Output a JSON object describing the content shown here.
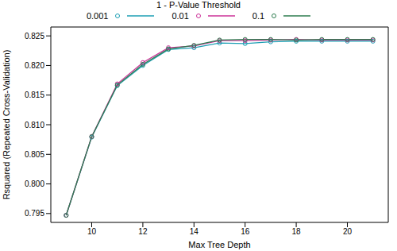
{
  "chart_data": {
    "type": "line",
    "x_label": "Max Tree Depth",
    "y_label": "Rsquared (Repeated Cross-Validation)",
    "legend_title": "1 - P-Value Threshold",
    "legend": "top",
    "grid": false,
    "x": [
      9,
      10,
      11,
      12,
      13,
      14,
      15,
      16,
      17,
      18,
      19,
      20,
      21
    ],
    "xlim": [
      8.4,
      21.6
    ],
    "xticks": [
      10,
      12,
      14,
      16,
      18,
      20
    ],
    "ylim": [
      0.7935,
      0.8265
    ],
    "yticks": [
      0.795,
      {
        "value": 0.8,
        "label": "0.800"
      },
      0.805,
      {
        "value": 0.81,
        "label": "0.810"
      },
      0.815,
      {
        "value": 0.82,
        "label": "0.820"
      },
      0.825
    ],
    "series": [
      {
        "name": "0.001",
        "color": "#1e9fb4",
        "marker": "circle",
        "line_style": "solid",
        "values": [
          0.7947,
          0.8079,
          0.8166,
          0.82,
          0.8227,
          0.823,
          0.8238,
          0.8237,
          0.824,
          0.8241,
          0.8241,
          0.8241,
          0.8241
        ]
      },
      {
        "name": "0.01",
        "color": "#cc3399",
        "marker": "circle",
        "line_style": "solid",
        "values": [
          0.7947,
          0.808,
          0.8169,
          0.8205,
          0.823,
          0.8233,
          0.8242,
          0.8242,
          0.8243,
          0.8244,
          0.8243,
          0.8243,
          0.8243
        ]
      },
      {
        "name": "0.1",
        "color": "#2e7d4f",
        "marker": "circle",
        "line_style": "solid",
        "values": [
          0.7947,
          0.808,
          0.8167,
          0.8202,
          0.8228,
          0.8234,
          0.8243,
          0.8244,
          0.8244,
          0.8243,
          0.8244,
          0.8244,
          0.8244
        ]
      }
    ]
  }
}
